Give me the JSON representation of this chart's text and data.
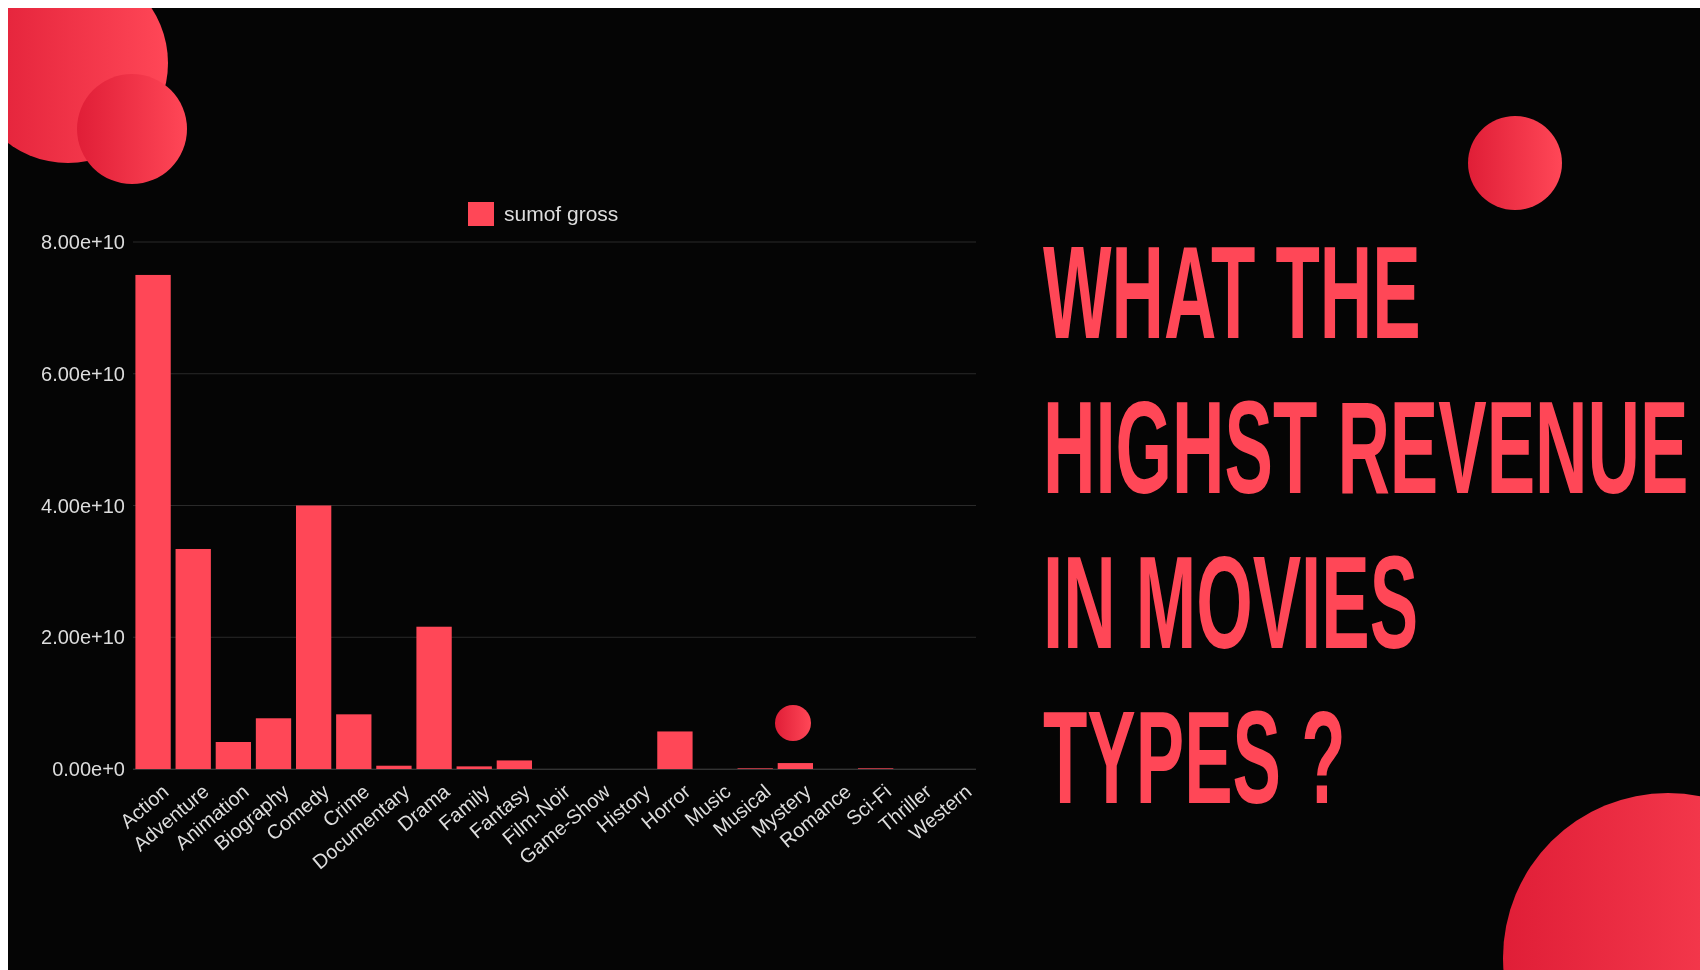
{
  "chart_data": {
    "type": "bar",
    "title": "WHAT THE HIGHST REVENUE IN MOVIES TYPES ?",
    "categories": [
      "Action",
      "Adventure",
      "Animation",
      "Biography",
      "Comedy",
      "Crime",
      "Documentary",
      "Drama",
      "Family",
      "Fantasy",
      "Film-Noir",
      "Game-Show",
      "History",
      "Horror",
      "Music",
      "Musical",
      "Mystery",
      "Romance",
      "Sci-Fi",
      "Thriller",
      "Western"
    ],
    "series": [
      {
        "name": "sumof gross",
        "color": "#ff4757",
        "values": [
          75000000000.0,
          33400000000.0,
          4100000000.0,
          7700000000.0,
          40000000000.0,
          8300000000.0,
          500000000.0,
          21600000000.0,
          400000000.0,
          1300000000.0,
          0,
          0,
          0,
          5700000000.0,
          0,
          100000000.0,
          900000000.0,
          0,
          100000000.0,
          0,
          0
        ]
      }
    ],
    "ylim": [
      0,
      80000000000.0
    ],
    "yticks": [
      {
        "value": 0,
        "label": "0.00e+0"
      },
      {
        "value": 20000000000.0,
        "label": "2.00e+10"
      },
      {
        "value": 40000000000.0,
        "label": "4.00e+10"
      },
      {
        "value": 60000000000.0,
        "label": "6.00e+10"
      },
      {
        "value": 80000000000.0,
        "label": "8.00e+10"
      }
    ],
    "grid": "y",
    "legend": "top"
  }
}
